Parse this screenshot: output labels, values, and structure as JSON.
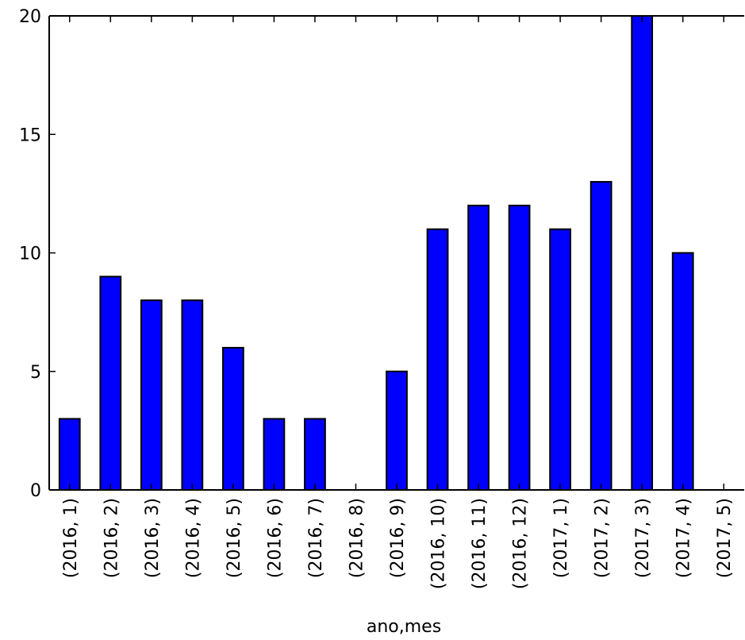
{
  "chart_data": {
    "type": "bar",
    "title": "",
    "xlabel": "ano,mes",
    "ylabel": "",
    "categories": [
      "(2016, 1)",
      "(2016, 2)",
      "(2016, 3)",
      "(2016, 4)",
      "(2016, 5)",
      "(2016, 6)",
      "(2016, 7)",
      "(2016, 8)",
      "(2016, 9)",
      "(2016, 10)",
      "(2016, 11)",
      "(2016, 12)",
      "(2017, 1)",
      "(2017, 2)",
      "(2017, 3)",
      "(2017, 4)",
      "(2017, 5)"
    ],
    "values": [
      3,
      9,
      8,
      8,
      6,
      3,
      3,
      0,
      5,
      11,
      12,
      12,
      11,
      13,
      20,
      10,
      0
    ],
    "ylim": [
      0,
      20
    ],
    "yticks": [
      0,
      5,
      10,
      15,
      20
    ],
    "bar_color": "#0000ff",
    "edge_color": "#000000",
    "grid": false,
    "legend": "none"
  }
}
